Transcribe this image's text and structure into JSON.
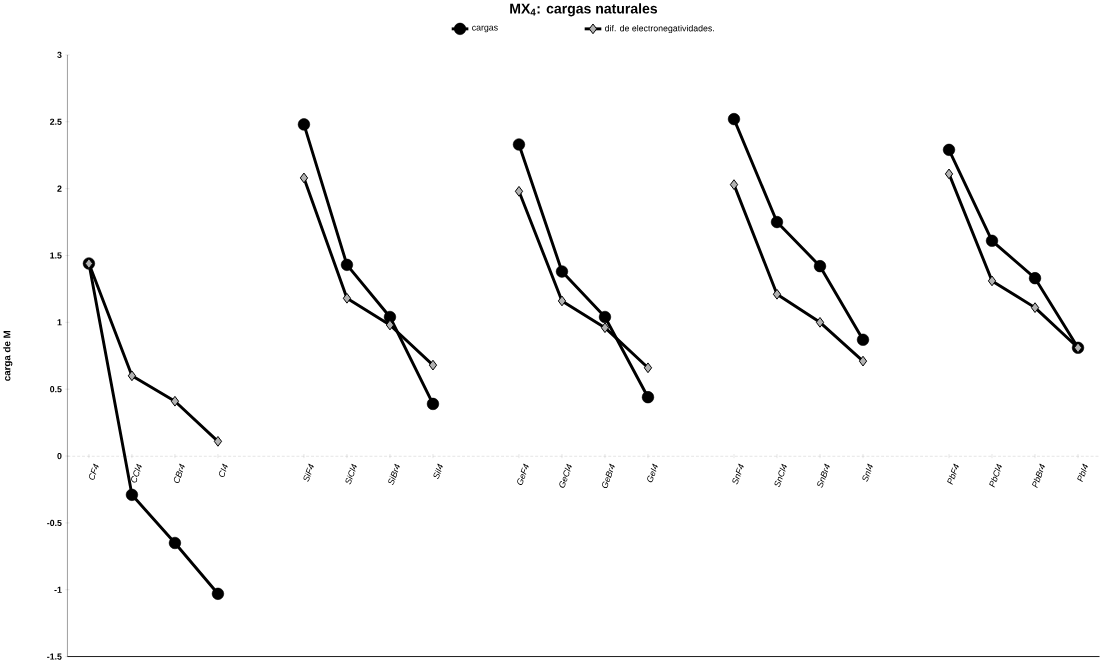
{
  "chart_data": {
    "type": "line",
    "title": "MX$_{4}$: cargas naturales",
    "ylabel": "carga de M",
    "categories": [
      "CF4",
      "CCl4",
      "CBr4",
      "CI4",
      null,
      "SiF4",
      "SiCl4",
      "SiBr4",
      "SiI4",
      null,
      "GeF4",
      "GeCl4",
      "GeBr4",
      "GeI4",
      null,
      "SnF4",
      "SnCl4",
      "SnBr4",
      "SnI4",
      null,
      "PbF4",
      "PbCl4",
      "PbBr4",
      "PbI4"
    ],
    "series": [
      {
        "name": "cargas",
        "color": "#000000",
        "marker": "circle",
        "values": [
          1.44,
          -0.29,
          -0.65,
          -1.03,
          null,
          2.48,
          1.43,
          1.04,
          0.39,
          null,
          2.33,
          1.38,
          1.04,
          0.44,
          null,
          2.52,
          1.75,
          1.42,
          0.87,
          null,
          2.29,
          1.61,
          1.33,
          0.81
        ]
      },
      {
        "name": "dif. de electronegatividades.",
        "color": "#000000",
        "marker": "diamond",
        "values": [
          1.44,
          0.6,
          0.41,
          0.11,
          null,
          2.08,
          1.18,
          0.98,
          0.68,
          null,
          1.98,
          1.16,
          0.96,
          0.66,
          null,
          2.03,
          1.21,
          1.0,
          0.71,
          null,
          2.11,
          1.31,
          1.11,
          0.81
        ]
      }
    ],
    "ylim": [
      -1.5,
      3
    ],
    "yticks": [
      -1.5,
      -1,
      -0.5,
      0,
      0.5,
      1,
      1.5,
      2,
      2.5,
      3
    ],
    "legend": "top",
    "line_style": "solid"
  }
}
